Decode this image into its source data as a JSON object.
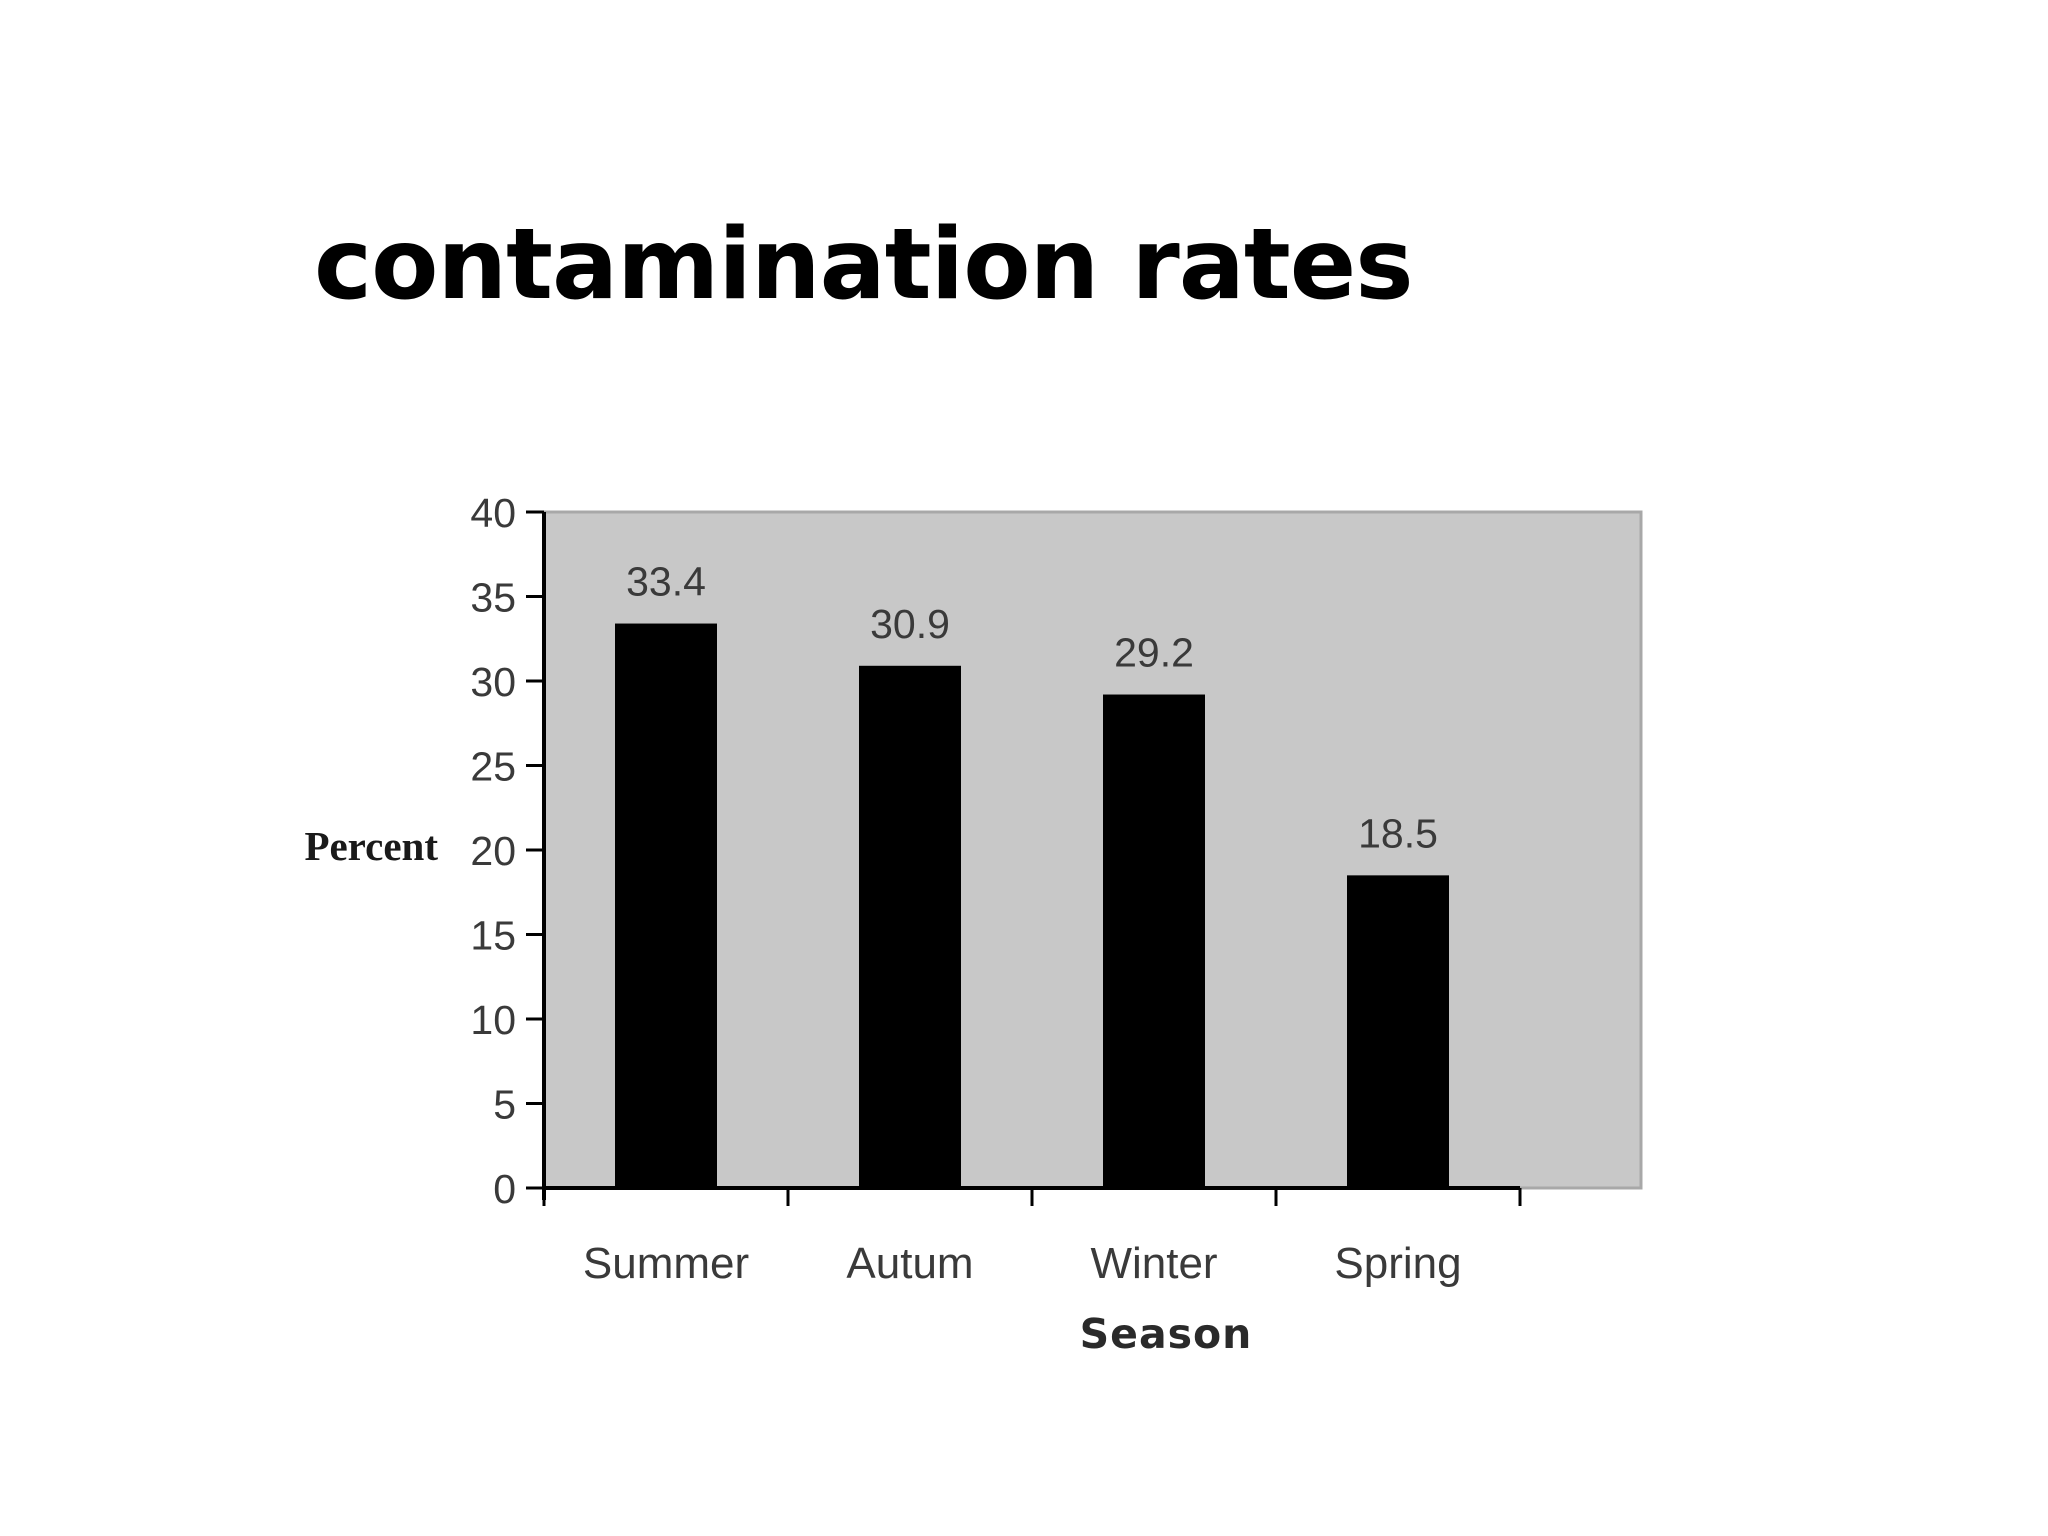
{
  "slide": {
    "title": "contamination rates"
  },
  "chart_data": {
    "type": "bar",
    "title": "",
    "categories": [
      "Summer",
      "Autum",
      "Winter",
      "Spring"
    ],
    "values": [
      33.4,
      30.9,
      29.2,
      18.5
    ],
    "data_labels": [
      "33.4",
      "30.9",
      "29.2",
      "18.5"
    ],
    "xlabel": "Season",
    "ylabel": "Percent",
    "ylim": [
      0,
      40
    ],
    "yticks": [
      0,
      5,
      10,
      15,
      20,
      25,
      30,
      35,
      40
    ],
    "grid": false,
    "legend": "none",
    "colors": {
      "bar": "#000000",
      "plot_background": "#c8c8c8",
      "axis": "#000000"
    }
  }
}
